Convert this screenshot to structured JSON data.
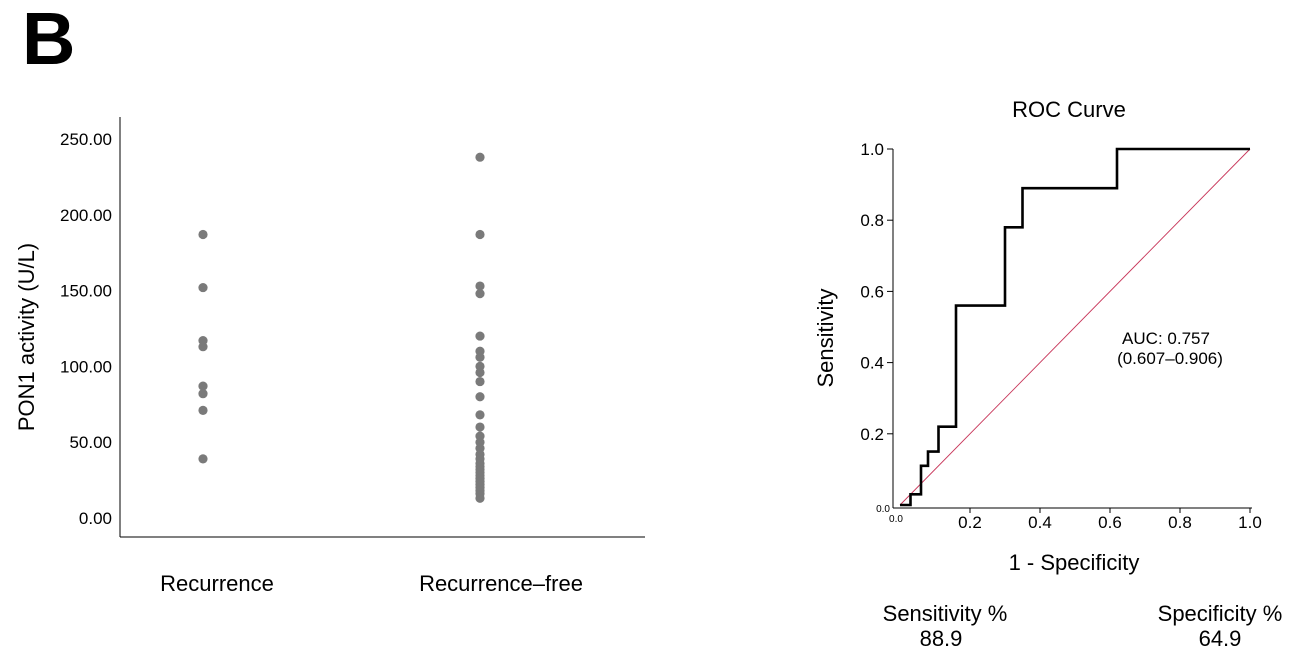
{
  "panel_label": "B",
  "chart_data": [
    {
      "type": "scatter",
      "ylabel": "PON1 activity (U/L)",
      "ylim": [
        0,
        250
      ],
      "yticks": [
        "0.00",
        "50.00",
        "100.00",
        "150.00",
        "200.00",
        "250.00"
      ],
      "categories": [
        "Recurrence",
        "Recurrence–free"
      ],
      "series": [
        {
          "category": "Recurrence",
          "values": [
            187,
            152,
            117,
            113,
            87,
            82,
            71,
            39
          ]
        },
        {
          "category": "Recurrence–free",
          "values": [
            238,
            187,
            153,
            148,
            120,
            110,
            106,
            100,
            96,
            90,
            80,
            68,
            60,
            54,
            50,
            46,
            42,
            39,
            36,
            34,
            32,
            30,
            28,
            26,
            24,
            22,
            20,
            18,
            16,
            13
          ]
        }
      ],
      "grid": false,
      "legend": "none"
    },
    {
      "type": "line",
      "title": "ROC Curve",
      "xlabel": "1 - Specificity",
      "ylabel": "Sensitivity",
      "xlim": [
        0,
        1
      ],
      "ylim": [
        0,
        1
      ],
      "xticks": [
        "0.2",
        "0.4",
        "0.6",
        "0.8",
        "1.0"
      ],
      "yticks": [
        "0.2",
        "0.4",
        "0.6",
        "0.8",
        "1.0"
      ],
      "origin_labels": {
        "x": "0.0",
        "y": "0.0"
      },
      "series": [
        {
          "role": "roc",
          "color": "#000000",
          "x": [
            0,
            0.03,
            0.03,
            0.06,
            0.06,
            0.08,
            0.08,
            0.11,
            0.11,
            0.16,
            0.16,
            0.3,
            0.3,
            0.35,
            0.35,
            0.62,
            0.62,
            1.0
          ],
          "y": [
            0,
            0,
            0.03,
            0.03,
            0.11,
            0.11,
            0.15,
            0.15,
            0.22,
            0.22,
            0.56,
            0.56,
            0.78,
            0.78,
            0.89,
            0.89,
            1.0,
            1.0
          ]
        },
        {
          "role": "reference",
          "color": "#c8365a",
          "x": [
            0,
            1
          ],
          "y": [
            0,
            1
          ]
        }
      ],
      "annotation": {
        "line1": "AUC: 0.757",
        "line2": "(0.607–0.906)"
      },
      "stats": {
        "sensitivity_label": "Sensitivity %",
        "sensitivity_value": "88.9",
        "specificity_label": "Specificity %",
        "specificity_value": "64.9"
      },
      "grid": false,
      "legend": "none"
    }
  ]
}
